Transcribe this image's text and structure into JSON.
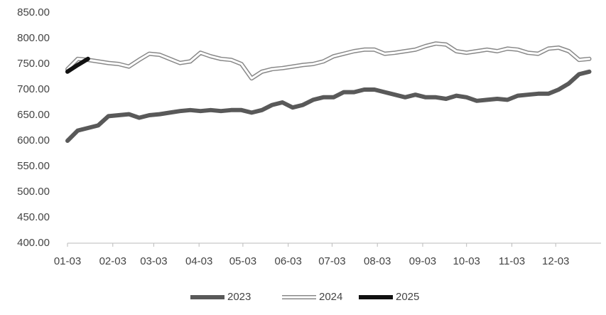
{
  "chart_data": {
    "type": "line",
    "x": [
      0,
      7,
      14,
      21,
      28,
      35,
      42,
      49,
      56,
      63,
      70,
      77,
      84,
      91,
      98,
      105,
      112,
      119,
      126,
      133,
      140,
      147,
      154,
      161,
      168,
      175,
      182,
      189,
      196,
      203,
      210,
      217,
      224,
      231,
      238,
      245,
      252,
      259,
      266,
      273,
      280,
      287,
      294,
      301,
      308,
      315,
      322,
      329,
      336,
      343,
      350,
      357
    ],
    "xlim": [
      0,
      365
    ],
    "xticks": [
      {
        "value": 0,
        "label": "01-03"
      },
      {
        "value": 31,
        "label": "02-03"
      },
      {
        "value": 59,
        "label": "03-03"
      },
      {
        "value": 90,
        "label": "04-03"
      },
      {
        "value": 120,
        "label": "05-03"
      },
      {
        "value": 151,
        "label": "06-03"
      },
      {
        "value": 181,
        "label": "07-03"
      },
      {
        "value": 212,
        "label": "08-03"
      },
      {
        "value": 243,
        "label": "09-03"
      },
      {
        "value": 273,
        "label": "10-03"
      },
      {
        "value": 304,
        "label": "11-03"
      },
      {
        "value": 334,
        "label": "12-03"
      }
    ],
    "ylim": [
      400,
      850
    ],
    "yticks": [
      {
        "value": 400,
        "label": "400.00"
      },
      {
        "value": 450,
        "label": "450.00"
      },
      {
        "value": 500,
        "label": "500.00"
      },
      {
        "value": 550,
        "label": "550.00"
      },
      {
        "value": 600,
        "label": "600.00"
      },
      {
        "value": 650,
        "label": "650.00"
      },
      {
        "value": 700,
        "label": "700.00"
      },
      {
        "value": 750,
        "label": "750.00"
      },
      {
        "value": 800,
        "label": "800.00"
      },
      {
        "value": 850,
        "label": "850.00"
      }
    ],
    "grid": false,
    "legend": "bottom",
    "series": [
      {
        "name": "2023",
        "color": "#595959",
        "values": [
          600,
          620,
          625,
          630,
          648,
          650,
          652,
          645,
          650,
          652,
          655,
          658,
          660,
          658,
          660,
          658,
          660,
          660,
          655,
          660,
          670,
          675,
          665,
          670,
          680,
          685,
          685,
          695,
          695,
          700,
          700,
          695,
          690,
          685,
          690,
          685,
          685,
          682,
          688,
          685,
          678,
          680,
          682,
          680,
          688,
          690,
          692,
          692,
          700,
          712,
          730,
          735
        ]
      },
      {
        "name": "2024",
        "color": "#ffffff",
        "values": [
          740,
          760,
          758,
          755,
          752,
          750,
          745,
          758,
          770,
          768,
          760,
          752,
          755,
          772,
          765,
          760,
          758,
          750,
          722,
          735,
          740,
          742,
          745,
          748,
          750,
          755,
          765,
          770,
          775,
          778,
          778,
          770,
          772,
          775,
          778,
          785,
          790,
          788,
          775,
          772,
          775,
          778,
          775,
          780,
          778,
          772,
          770,
          780,
          782,
          775,
          758,
          760
        ]
      },
      {
        "name": "2025",
        "color": "#111111",
        "values": [
          735,
          748,
          760,
          null,
          null,
          null,
          null,
          null,
          null,
          null,
          null,
          null,
          null,
          null,
          null,
          null,
          null,
          null,
          null,
          null,
          null,
          null,
          null,
          null,
          null,
          null,
          null,
          null,
          null,
          null,
          null,
          null,
          null,
          null,
          null,
          null,
          null,
          null,
          null,
          null,
          null,
          null,
          null,
          null,
          null,
          null,
          null,
          null,
          null,
          null,
          null,
          null
        ]
      }
    ]
  }
}
